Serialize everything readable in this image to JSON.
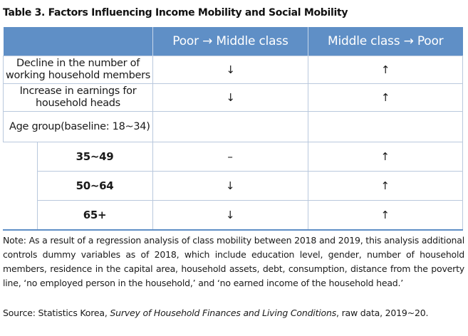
{
  "title": "Table 3. Factors Influencing Income Mobility and Social Mobility",
  "table": {
    "headers": [
      "",
      "Poor → Middle class",
      "Middle class → Poor"
    ],
    "rows": [
      {
        "label": "Decline in the number of working household members",
        "poor_to_middle": "↓",
        "middle_to_poor": "↑"
      },
      {
        "label": "Increase in earnings for household heads",
        "poor_to_middle": "↓",
        "middle_to_poor": "↑"
      },
      {
        "label": "Age group(baseline: 18~34)",
        "poor_to_middle": "",
        "middle_to_poor": ""
      }
    ],
    "subrows": [
      {
        "label": "35~49",
        "poor_to_middle": "–",
        "middle_to_poor": "↑"
      },
      {
        "label": "50~64",
        "poor_to_middle": "↓",
        "middle_to_poor": "↑"
      },
      {
        "label": "65+",
        "poor_to_middle": "↓",
        "middle_to_poor": "↑"
      }
    ]
  },
  "note": "Note: As a result of a regression analysis of class mobility between 2018 and 2019, this analysis additional controls dummy variables as of 2018, which include education level, gender, number of household members, residence in the capital area, household assets, debt, consumption, distance from the poverty line, ‘no employed person in the household,’ and ‘no earned income of the household head.’",
  "source": {
    "prefix": "Source: Statistics Korea, ",
    "title": "Survey of Household Finances and Living Conditions",
    "suffix": ", raw data, 2019~20."
  },
  "colors": {
    "header_bg": "#5f8fc6",
    "border": "#b9c8dd"
  }
}
